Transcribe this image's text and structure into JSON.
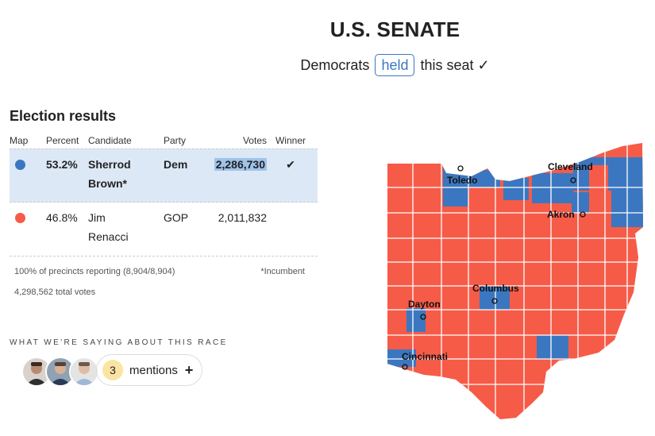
{
  "header": {
    "title": "U.S. SENATE",
    "sub_prefix": "Democrats",
    "held_label": "held",
    "sub_suffix": "this seat ✓"
  },
  "results": {
    "heading": "Election results",
    "columns": [
      "Map",
      "Percent",
      "Candidate",
      "Party",
      "Votes",
      "Winner"
    ],
    "rows": [
      {
        "color": "#3b77c0",
        "percent": "53.2%",
        "candidate_line1": "Sherrod",
        "candidate_line2": "Brown*",
        "party": "Dem",
        "votes": "2,286,730",
        "winner": "✔"
      },
      {
        "color": "#f65b48",
        "percent": "46.8%",
        "candidate_line1": "Jim",
        "candidate_line2": "Renacci",
        "party": "GOP",
        "votes": "2,011,832",
        "winner": ""
      }
    ],
    "reporting": "100% of precincts reporting (8,904/8,904)",
    "incumbent_note": "*Incumbent",
    "total_votes": "4,298,562 total votes"
  },
  "saying": {
    "label": "WHAT WE'RE SAYING ABOUT THIS RACE",
    "mentions_count": "3",
    "mentions_label": "mentions",
    "plus": "+"
  },
  "map": {
    "dem_color": "#3b77c0",
    "gop_color": "#f65b48",
    "cities": [
      "Toledo",
      "Cleveland",
      "Akron",
      "Columbus",
      "Dayton",
      "Cincinnati"
    ]
  }
}
